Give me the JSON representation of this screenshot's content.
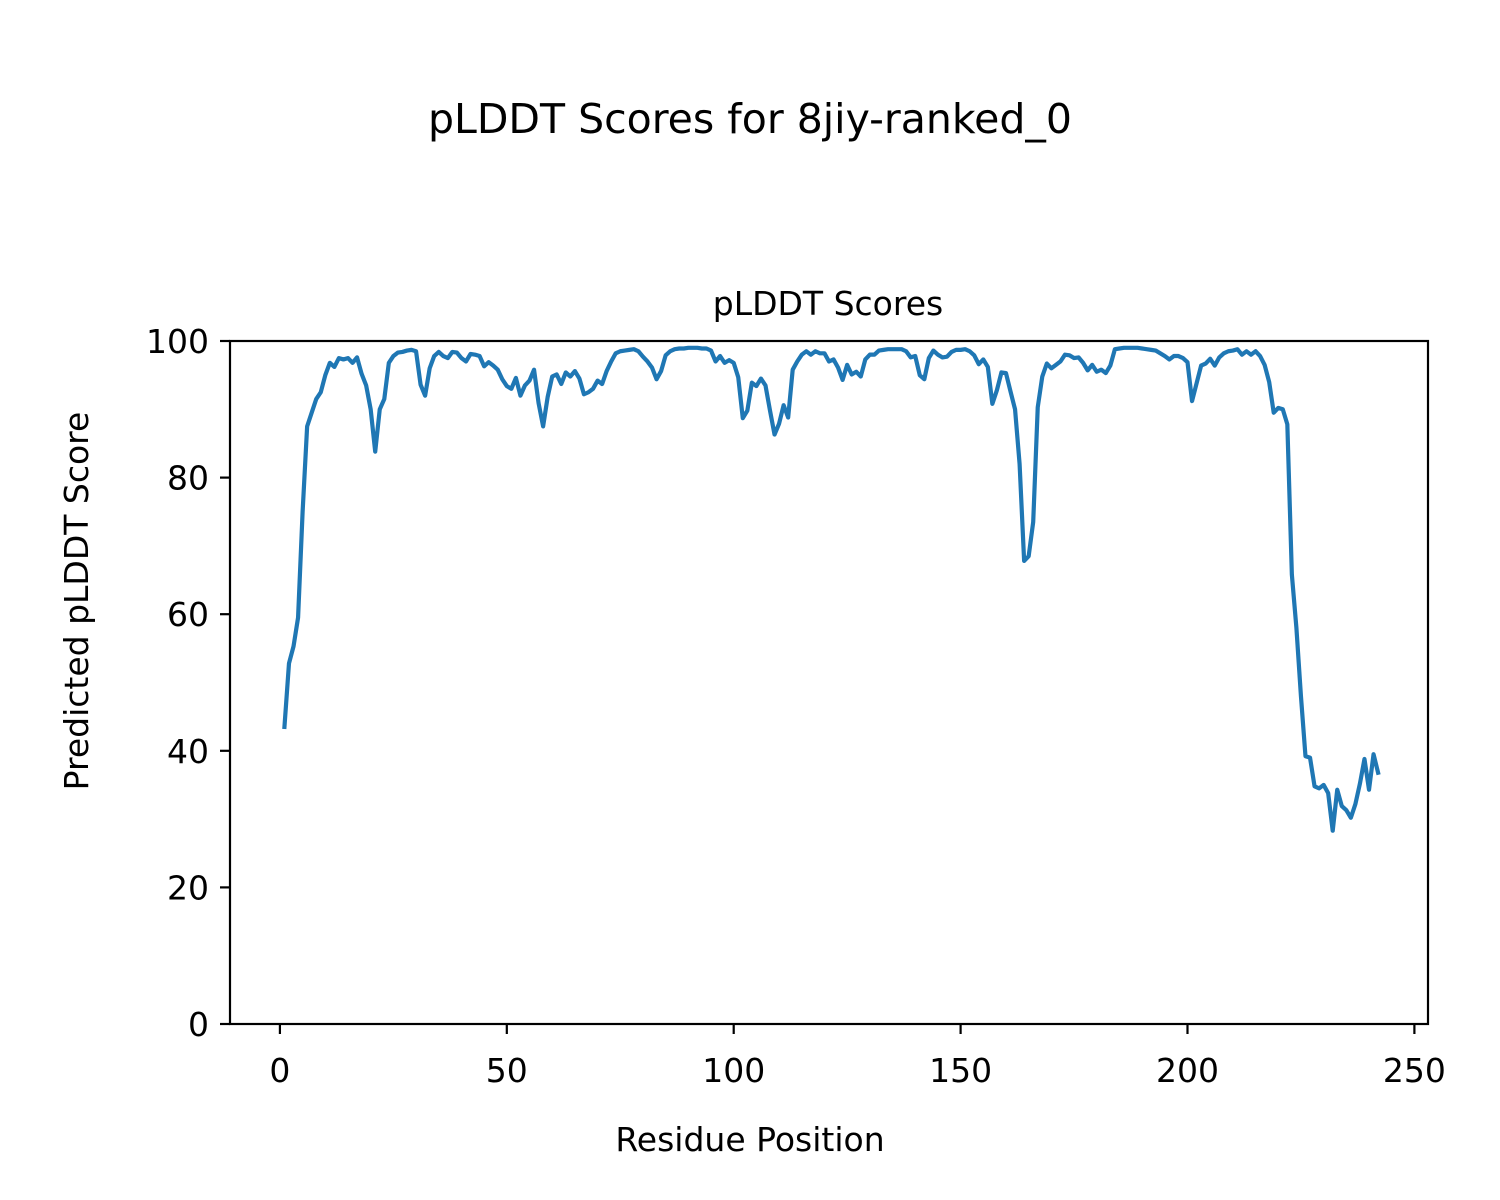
{
  "figure": {
    "suptitle": "pLDDT Scores for 8jiy-ranked_0"
  },
  "chart_data": {
    "type": "line",
    "title": "pLDDT Scores",
    "xlabel": "Residue Position",
    "ylabel": "Predicted pLDDT Score",
    "xlim": [
      -11,
      253
    ],
    "ylim": [
      0,
      100
    ],
    "xticks": [
      0,
      50,
      100,
      150,
      200,
      250
    ],
    "yticks": [
      0,
      20,
      40,
      60,
      80,
      100
    ],
    "grid": false,
    "legend": "none",
    "series": [
      {
        "color": "#1f77b4",
        "x": [
          1,
          2,
          3,
          4,
          5,
          6,
          7,
          8,
          9,
          10,
          11,
          12,
          13,
          14,
          15,
          16,
          17,
          18,
          19,
          20,
          21,
          22,
          23,
          24,
          25,
          26,
          27,
          28,
          29,
          30,
          31,
          32,
          33,
          34,
          35,
          36,
          37,
          38,
          39,
          40,
          41,
          42,
          43,
          44,
          45,
          46,
          47,
          48,
          49,
          50,
          51,
          52,
          53,
          54,
          55,
          56,
          57,
          58,
          59,
          60,
          61,
          62,
          63,
          64,
          65,
          66,
          67,
          68,
          69,
          70,
          71,
          72,
          73,
          74,
          75,
          76,
          77,
          78,
          79,
          80,
          81,
          82,
          83,
          84,
          85,
          86,
          87,
          88,
          89,
          90,
          91,
          92,
          93,
          94,
          95,
          96,
          97,
          98,
          99,
          100,
          101,
          102,
          103,
          104,
          105,
          106,
          107,
          108,
          109,
          110,
          111,
          112,
          113,
          114,
          115,
          116,
          117,
          118,
          119,
          120,
          121,
          122,
          123,
          124,
          125,
          126,
          127,
          128,
          129,
          130,
          131,
          132,
          133,
          134,
          135,
          136,
          137,
          138,
          139,
          140,
          141,
          142,
          143,
          144,
          145,
          146,
          147,
          148,
          149,
          150,
          151,
          152,
          153,
          154,
          155,
          156,
          157,
          158,
          159,
          160,
          161,
          162,
          163,
          164,
          165,
          166,
          167,
          168,
          169,
          170,
          171,
          172,
          173,
          174,
          175,
          176,
          177,
          178,
          179,
          180,
          181,
          182,
          183,
          184,
          185,
          186,
          187,
          188,
          189,
          190,
          191,
          192,
          193,
          194,
          195,
          196,
          197,
          198,
          199,
          200,
          201,
          202,
          203,
          204,
          205,
          206,
          207,
          208,
          209,
          210,
          211,
          212,
          213,
          214,
          215,
          216,
          217,
          218,
          219,
          220,
          221,
          222,
          223,
          224,
          225,
          226,
          227,
          228,
          229,
          230,
          231,
          232,
          233,
          234,
          235,
          236,
          237,
          238,
          239,
          240,
          241,
          242
        ],
        "y": [
          43.5,
          52.8,
          55.3,
          59.5,
          75.0,
          87.5,
          89.5,
          91.5,
          92.5,
          95.0,
          96.8,
          96.2,
          97.5,
          97.3,
          97.5,
          96.8,
          97.6,
          95.2,
          93.5,
          90.0,
          83.8,
          90.0,
          91.5,
          96.8,
          97.8,
          98.3,
          98.4,
          98.6,
          98.7,
          98.5,
          93.6,
          92.0,
          96.0,
          97.8,
          98.4,
          97.8,
          97.5,
          98.4,
          98.3,
          97.5,
          97.0,
          98.1,
          98.0,
          97.8,
          96.3,
          96.9,
          96.4,
          95.8,
          94.4,
          93.4,
          93.0,
          94.6,
          92.0,
          93.5,
          94.2,
          95.8,
          90.9,
          87.5,
          91.8,
          94.8,
          95.1,
          93.7,
          95.4,
          94.8,
          95.6,
          94.5,
          92.2,
          92.5,
          93.0,
          94.2,
          93.7,
          95.6,
          97.0,
          98.2,
          98.5,
          98.6,
          98.7,
          98.8,
          98.5,
          97.7,
          97.0,
          96.1,
          94.4,
          95.6,
          97.9,
          98.5,
          98.8,
          98.9,
          98.9,
          99.0,
          99.0,
          99.0,
          98.9,
          98.9,
          98.6,
          97.0,
          97.8,
          96.8,
          97.2,
          96.8,
          94.7,
          88.7,
          89.8,
          93.9,
          93.4,
          94.5,
          93.5,
          89.8,
          86.3,
          87.9,
          90.6,
          88.8,
          95.8,
          97.0,
          98.0,
          98.5,
          98.0,
          98.5,
          98.2,
          98.2,
          97.0,
          97.3,
          96.1,
          94.3,
          96.5,
          95.1,
          95.5,
          94.8,
          97.3,
          98.0,
          98.0,
          98.6,
          98.7,
          98.8,
          98.8,
          98.8,
          98.8,
          98.5,
          97.6,
          97.8,
          95.0,
          94.4,
          97.5,
          98.6,
          98.0,
          97.6,
          97.7,
          98.4,
          98.7,
          98.7,
          98.8,
          98.5,
          97.9,
          96.6,
          97.3,
          96.2,
          90.8,
          92.8,
          95.4,
          95.3,
          92.6,
          90.0,
          82.0,
          67.8,
          68.5,
          73.5,
          90.3,
          94.8,
          96.7,
          96.0,
          96.5,
          97.0,
          98.0,
          97.9,
          97.5,
          97.6,
          96.8,
          95.7,
          96.5,
          95.5,
          95.8,
          95.3,
          96.4,
          98.8,
          98.9,
          99.0,
          99.0,
          99.0,
          99.0,
          98.9,
          98.8,
          98.7,
          98.6,
          98.2,
          97.8,
          97.3,
          97.8,
          97.8,
          97.5,
          96.9,
          91.2,
          93.8,
          96.4,
          96.7,
          97.4,
          96.4,
          97.6,
          98.2,
          98.5,
          98.6,
          98.8,
          98.0,
          98.5,
          98.0,
          98.5,
          97.8,
          96.5,
          94.0,
          89.5,
          90.2,
          90.0,
          87.8,
          65.8,
          58.0,
          48.0,
          39.2,
          39.0,
          34.8,
          34.5,
          35.0,
          33.8,
          28.3,
          34.3,
          31.9,
          31.3,
          30.2,
          32.2,
          35.2,
          38.8,
          34.3,
          39.5,
          36.8
        ]
      }
    ]
  }
}
